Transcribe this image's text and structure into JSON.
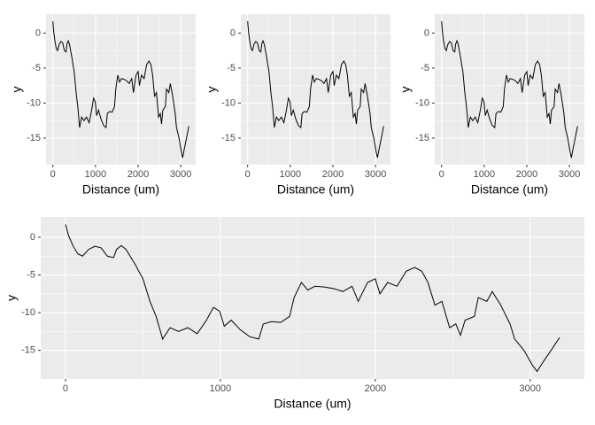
{
  "chart_data": [
    {
      "type": "line",
      "x_label": "Distance (um)",
      "y_label": "y",
      "color": "#000000",
      "grid": true,
      "x": [
        0,
        20,
        50,
        80,
        110,
        150,
        190,
        230,
        270,
        310,
        330,
        360,
        390,
        420,
        450,
        470,
        500,
        545,
        585,
        627,
        675,
        730,
        790,
        850,
        910,
        955,
        995,
        1025,
        1070,
        1130,
        1190,
        1248,
        1277,
        1330,
        1390,
        1447,
        1476,
        1523,
        1564,
        1610,
        1670,
        1730,
        1790,
        1850,
        1890,
        1950,
        2000,
        2030,
        2080,
        2140,
        2200,
        2255,
        2300,
        2340,
        2385,
        2430,
        2480,
        2520,
        2550,
        2580,
        2640,
        2665,
        2720,
        2755,
        2810,
        2870,
        2900,
        2960,
        3015,
        3045,
        3085,
        3135,
        3190
      ],
      "values": [
        1.7,
        0.2,
        -1.2,
        -2.2,
        -2.5,
        -1.6,
        -1.2,
        -1.4,
        -2.5,
        -2.7,
        -1.6,
        -1.1,
        -1.6,
        -2.6,
        -3.6,
        -4.4,
        -5.5,
        -8.5,
        -10.5,
        -13.5,
        -12,
        -12.5,
        -12,
        -12.8,
        -11,
        -9.3,
        -9.8,
        -11.8,
        -11,
        -12.3,
        -13.2,
        -13.5,
        -11.5,
        -11.2,
        -11.3,
        -10.5,
        -8,
        -6,
        -7,
        -6.5,
        -6.6,
        -6.8,
        -7.2,
        -6.5,
        -8.5,
        -6,
        -5.5,
        -7.5,
        -6,
        -6.5,
        -4.5,
        -4,
        -4.5,
        -6,
        -9,
        -8.5,
        -12,
        -11.5,
        -13,
        -11,
        -10.5,
        -8,
        -8.5,
        -7.2,
        -9,
        -11.5,
        -13.5,
        -15,
        -17,
        -17.8,
        -16.5,
        -15,
        -13.3
      ],
      "xlim": [
        -160,
        3350
      ],
      "ylim": [
        -18.8,
        2.7
      ],
      "xticks": [
        0,
        1000,
        2000,
        3000
      ],
      "yticks": [
        0,
        -5,
        -10,
        -15
      ]
    },
    {
      "type": "line",
      "x_label": "Distance (um)",
      "y_label": "y",
      "color": "#000000",
      "grid": true,
      "x": [
        0,
        20,
        50,
        80,
        110,
        150,
        190,
        230,
        270,
        310,
        330,
        360,
        390,
        420,
        450,
        470,
        500,
        545,
        585,
        627,
        675,
        730,
        790,
        850,
        910,
        955,
        995,
        1025,
        1070,
        1130,
        1190,
        1248,
        1277,
        1330,
        1390,
        1447,
        1476,
        1523,
        1564,
        1610,
        1670,
        1730,
        1790,
        1850,
        1890,
        1950,
        2000,
        2030,
        2080,
        2140,
        2200,
        2255,
        2300,
        2340,
        2385,
        2430,
        2480,
        2520,
        2550,
        2580,
        2640,
        2665,
        2720,
        2755,
        2810,
        2870,
        2900,
        2960,
        3015,
        3045,
        3085,
        3135,
        3190
      ],
      "values": [
        1.7,
        0.2,
        -1.2,
        -2.2,
        -2.5,
        -1.6,
        -1.2,
        -1.4,
        -2.5,
        -2.7,
        -1.6,
        -1.1,
        -1.6,
        -2.6,
        -3.6,
        -4.4,
        -5.5,
        -8.5,
        -10.5,
        -13.5,
        -12,
        -12.5,
        -12,
        -12.8,
        -11,
        -9.3,
        -9.8,
        -11.8,
        -11,
        -12.3,
        -13.2,
        -13.5,
        -11.5,
        -11.2,
        -11.3,
        -10.5,
        -8,
        -6,
        -7,
        -6.5,
        -6.6,
        -6.8,
        -7.2,
        -6.5,
        -8.5,
        -6,
        -5.5,
        -7.5,
        -6,
        -6.5,
        -4.5,
        -4,
        -4.5,
        -6,
        -9,
        -8.5,
        -12,
        -11.5,
        -13,
        -11,
        -10.5,
        -8,
        -8.5,
        -7.2,
        -9,
        -11.5,
        -13.5,
        -15,
        -17,
        -17.8,
        -16.5,
        -15,
        -13.3
      ],
      "xlim": [
        -160,
        3350
      ],
      "ylim": [
        -18.8,
        2.7
      ],
      "xticks": [
        0,
        1000,
        2000,
        3000
      ],
      "yticks": [
        0,
        -5,
        -10,
        -15
      ]
    },
    {
      "type": "line",
      "x_label": "Distance (um)",
      "y_label": "y",
      "color": "#000000",
      "grid": true,
      "x": [
        0,
        20,
        50,
        80,
        110,
        150,
        190,
        230,
        270,
        310,
        330,
        360,
        390,
        420,
        450,
        470,
        500,
        545,
        585,
        627,
        675,
        730,
        790,
        850,
        910,
        955,
        995,
        1025,
        1070,
        1130,
        1190,
        1248,
        1277,
        1330,
        1390,
        1447,
        1476,
        1523,
        1564,
        1610,
        1670,
        1730,
        1790,
        1850,
        1890,
        1950,
        2000,
        2030,
        2080,
        2140,
        2200,
        2255,
        2300,
        2340,
        2385,
        2430,
        2480,
        2520,
        2550,
        2580,
        2640,
        2665,
        2720,
        2755,
        2810,
        2870,
        2900,
        2960,
        3015,
        3045,
        3085,
        3135,
        3190
      ],
      "values": [
        1.7,
        0.2,
        -1.2,
        -2.2,
        -2.5,
        -1.6,
        -1.2,
        -1.4,
        -2.5,
        -2.7,
        -1.6,
        -1.1,
        -1.6,
        -2.6,
        -3.6,
        -4.4,
        -5.5,
        -8.5,
        -10.5,
        -13.5,
        -12,
        -12.5,
        -12,
        -12.8,
        -11,
        -9.3,
        -9.8,
        -11.8,
        -11,
        -12.3,
        -13.2,
        -13.5,
        -11.5,
        -11.2,
        -11.3,
        -10.5,
        -8,
        -6,
        -7,
        -6.5,
        -6.6,
        -6.8,
        -7.2,
        -6.5,
        -8.5,
        -6,
        -5.5,
        -7.5,
        -6,
        -6.5,
        -4.5,
        -4,
        -4.5,
        -6,
        -9,
        -8.5,
        -12,
        -11.5,
        -13,
        -11,
        -10.5,
        -8,
        -8.5,
        -7.2,
        -9,
        -11.5,
        -13.5,
        -15,
        -17,
        -17.8,
        -16.5,
        -15,
        -13.3
      ],
      "xlim": [
        -160,
        3350
      ],
      "ylim": [
        -18.8,
        2.7
      ],
      "xticks": [
        0,
        1000,
        2000,
        3000
      ],
      "yticks": [
        0,
        -5,
        -10,
        -15
      ]
    },
    {
      "type": "line",
      "x_label": "Distance (um)",
      "y_label": "y",
      "color": "#000000",
      "grid": true,
      "x": [
        0,
        20,
        50,
        80,
        110,
        150,
        190,
        230,
        270,
        310,
        330,
        360,
        390,
        420,
        450,
        470,
        500,
        545,
        585,
        627,
        675,
        730,
        790,
        850,
        910,
        955,
        995,
        1025,
        1070,
        1130,
        1190,
        1248,
        1277,
        1330,
        1390,
        1447,
        1476,
        1523,
        1564,
        1610,
        1670,
        1730,
        1790,
        1850,
        1890,
        1950,
        2000,
        2030,
        2080,
        2140,
        2200,
        2255,
        2300,
        2340,
        2385,
        2430,
        2480,
        2520,
        2550,
        2580,
        2640,
        2665,
        2720,
        2755,
        2810,
        2870,
        2900,
        2960,
        3015,
        3045,
        3085,
        3135,
        3190
      ],
      "values": [
        1.7,
        0.2,
        -1.2,
        -2.2,
        -2.5,
        -1.6,
        -1.2,
        -1.4,
        -2.5,
        -2.7,
        -1.6,
        -1.1,
        -1.6,
        -2.6,
        -3.6,
        -4.4,
        -5.5,
        -8.5,
        -10.5,
        -13.5,
        -12,
        -12.5,
        -12,
        -12.8,
        -11,
        -9.3,
        -9.8,
        -11.8,
        -11,
        -12.3,
        -13.2,
        -13.5,
        -11.5,
        -11.2,
        -11.3,
        -10.5,
        -8,
        -6,
        -7,
        -6.5,
        -6.6,
        -6.8,
        -7.2,
        -6.5,
        -8.5,
        -6,
        -5.5,
        -7.5,
        -6,
        -6.5,
        -4.5,
        -4,
        -4.5,
        -6,
        -9,
        -8.5,
        -12,
        -11.5,
        -13,
        -11,
        -10.5,
        -8,
        -8.5,
        -7.2,
        -9,
        -11.5,
        -13.5,
        -15,
        -17,
        -17.8,
        -16.5,
        -15,
        -13.3
      ],
      "xlim": [
        -160,
        3350
      ],
      "ylim": [
        -18.8,
        2.7
      ],
      "xticks": [
        0,
        1000,
        2000,
        3000
      ],
      "yticks": [
        0,
        -5,
        -10,
        -15
      ]
    }
  ]
}
